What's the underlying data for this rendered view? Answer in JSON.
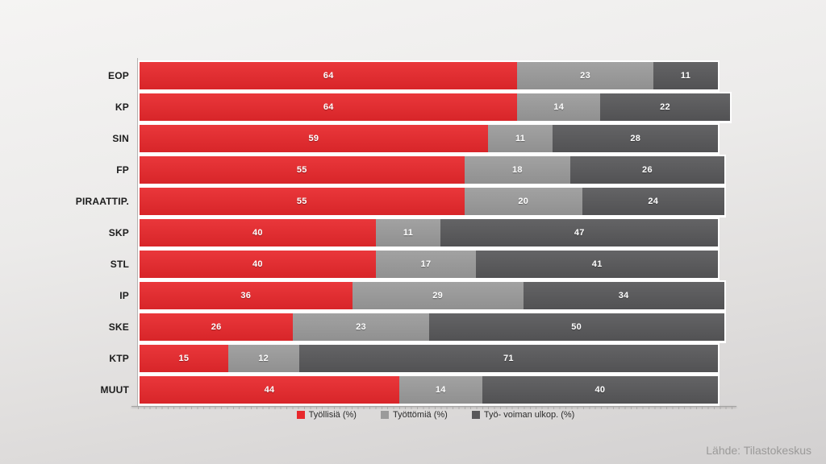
{
  "chart_data": {
    "type": "bar",
    "orientation": "horizontal",
    "stacked": true,
    "grid": false,
    "legend_position": "bottom",
    "xlim": [
      0,
      100
    ],
    "categories": [
      "EOP",
      "KP",
      "SIN",
      "FP",
      "PIRAATTIP.",
      "SKP",
      "STL",
      "IP",
      "SKE",
      "KTP",
      "MUUT"
    ],
    "series": [
      {
        "name": "Työllisiä (%)",
        "color": "#e8282c",
        "values": [
          64,
          64,
          59,
          55,
          55,
          40,
          40,
          36,
          26,
          15,
          44
        ]
      },
      {
        "name": "Työttömiä (%)",
        "color": "#9b9b9b",
        "values": [
          23,
          14,
          11,
          18,
          20,
          11,
          17,
          29,
          23,
          12,
          14
        ]
      },
      {
        "name": "Työ- voiman ulkop. (%)",
        "color": "#58585a",
        "values": [
          11,
          22,
          28,
          26,
          24,
          47,
          41,
          34,
          50,
          71,
          40
        ]
      }
    ],
    "value_labels": "inside-center",
    "source": "Lähde: Tilastokeskus"
  }
}
